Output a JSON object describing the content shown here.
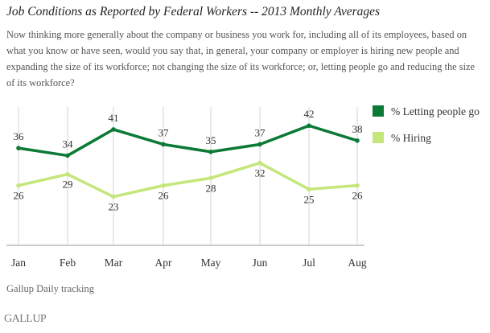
{
  "chart_data": {
    "type": "line",
    "title": "Job Conditions as Reported by Federal Workers -- 2013 Monthly Averages",
    "subtitle": "Now thinking more generally about the company or business you work for, including all of its employees, based on what you know or have seen, would you say that, in general, your company or employer is hiring new people and expanding the size of its workforce; not changing the size of its workforce; or, letting people go and reducing the size of its workforce?",
    "categories": [
      "Jan",
      "Feb",
      "Mar",
      "Apr",
      "May",
      "Jun",
      "Jul",
      "Aug"
    ],
    "series": [
      {
        "name": "% Letting people go",
        "color": "#0a7a35",
        "values": [
          36,
          34,
          41,
          37,
          35,
          37,
          42,
          38
        ]
      },
      {
        "name": "% Hiring",
        "color": "#c5e67a",
        "values": [
          26,
          29,
          23,
          26,
          28,
          32,
          25,
          26
        ]
      }
    ],
    "ylim": [
      10,
      47
    ],
    "grid": "vertical",
    "legend": "top-right",
    "xlabel": "",
    "ylabel": ""
  },
  "source": "Gallup Daily tracking",
  "logo": "GALLUP"
}
